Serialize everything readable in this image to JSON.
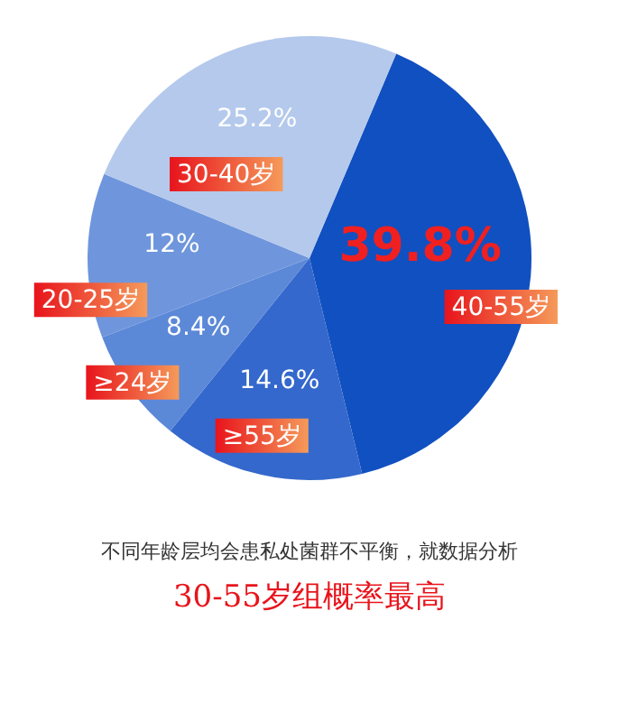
{
  "chart_data": {
    "type": "pie",
    "categories": [
      "40-55岁",
      "≥55岁",
      "≥24岁",
      "20-25岁",
      "30-40岁"
    ],
    "values": [
      39.8,
      14.6,
      8.4,
      12,
      25.2
    ],
    "colors": [
      "#1150c0",
      "#3468cc",
      "#5c88d8",
      "#6f96dc",
      "#b4c9ec"
    ],
    "value_labels": [
      "39.8%",
      "14.6%",
      "8.4%",
      "12%",
      "25.2%"
    ],
    "legend": false,
    "annotations": [
      "不同年龄层均会患私处菌群不平衡，就数据分析",
      "30-55岁组概率最高"
    ]
  }
}
